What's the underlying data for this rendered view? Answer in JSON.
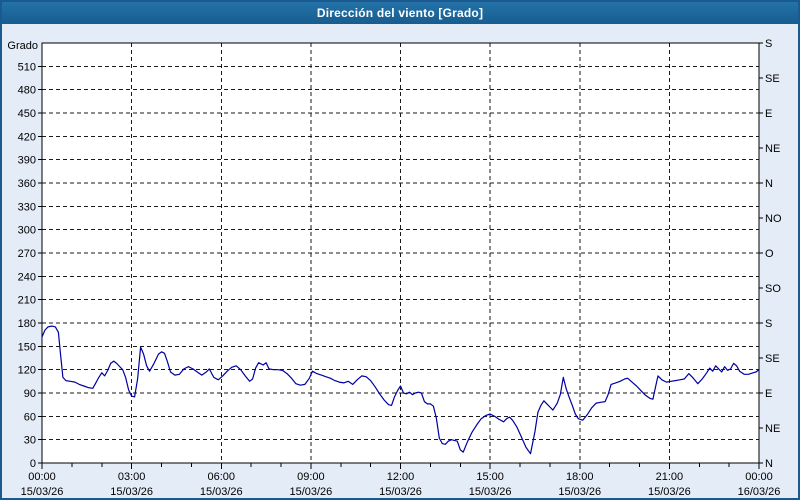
{
  "window": {
    "title": "Dirección del viento [Grado]"
  },
  "colors": {
    "window_border": "#1a5a8e",
    "titlebar_top": "#2473a8",
    "titlebar_bottom": "#175d90",
    "title_text": "#ffffff",
    "background": "#e4ecf7",
    "plot_background": "#ffffff",
    "grid": "#1a1a1a",
    "axis_text": "#000000",
    "line": "#0000a0"
  },
  "y_axis": {
    "title": "Grado",
    "tick_values": [
      0,
      30,
      60,
      90,
      120,
      150,
      180,
      210,
      240,
      270,
      300,
      330,
      360,
      390,
      420,
      450,
      480,
      510
    ],
    "tick_labels": [
      "0",
      "30",
      "60",
      "90",
      "120",
      "150",
      "180",
      "210",
      "240",
      "270",
      "300",
      "330",
      "360",
      "390",
      "420",
      "450",
      "480",
      "510"
    ]
  },
  "y2_axis": {
    "tick_step_deg": 45,
    "labels_bottom_to_top": [
      "N",
      "NE",
      "E",
      "SE",
      "S",
      "SO",
      "O",
      "NO",
      "N",
      "NE",
      "E",
      "SE",
      "S"
    ]
  },
  "x_axis": {
    "minor_tick_every_hours": 1,
    "ticks": [
      {
        "hour": 0,
        "time": "00:00",
        "date": "15/03/26"
      },
      {
        "hour": 3,
        "time": "03:00",
        "date": "15/03/26"
      },
      {
        "hour": 6,
        "time": "06:00",
        "date": "15/03/26"
      },
      {
        "hour": 9,
        "time": "09:00",
        "date": "15/03/26"
      },
      {
        "hour": 12,
        "time": "12:00",
        "date": "15/03/26"
      },
      {
        "hour": 15,
        "time": "15:00",
        "date": "15/03/26"
      },
      {
        "hour": 18,
        "time": "18:00",
        "date": "15/03/26"
      },
      {
        "hour": 21,
        "time": "21:00",
        "date": "15/03/26"
      },
      {
        "hour": 24,
        "time": "00:00",
        "date": "16/03/26"
      }
    ]
  },
  "chart_data": {
    "type": "line",
    "title": "Dirección del viento [Grado]",
    "xlabel": "",
    "ylabel": "Grado",
    "ylim": [
      0,
      540
    ],
    "xlim_hours": [
      0,
      24
    ],
    "grid": "dashed",
    "legend": "none",
    "series": [
      {
        "name": "Dirección del viento",
        "color": "#0000a0",
        "points": [
          [
            0.0,
            162
          ],
          [
            0.1,
            171
          ],
          [
            0.2,
            175
          ],
          [
            0.33,
            176
          ],
          [
            0.45,
            175
          ],
          [
            0.55,
            168
          ],
          [
            0.62,
            140
          ],
          [
            0.7,
            110
          ],
          [
            0.8,
            106
          ],
          [
            0.95,
            105
          ],
          [
            1.1,
            104
          ],
          [
            1.25,
            101
          ],
          [
            1.4,
            99
          ],
          [
            1.55,
            97
          ],
          [
            1.7,
            96
          ],
          [
            1.8,
            103
          ],
          [
            1.9,
            110
          ],
          [
            2.0,
            116
          ],
          [
            2.1,
            112
          ],
          [
            2.2,
            119
          ],
          [
            2.3,
            128
          ],
          [
            2.4,
            131
          ],
          [
            2.5,
            128
          ],
          [
            2.6,
            124
          ],
          [
            2.7,
            120
          ],
          [
            2.8,
            110
          ],
          [
            2.9,
            94
          ],
          [
            3.0,
            86
          ],
          [
            3.1,
            85
          ],
          [
            3.2,
            108
          ],
          [
            3.3,
            149
          ],
          [
            3.4,
            140
          ],
          [
            3.5,
            125
          ],
          [
            3.6,
            118
          ],
          [
            3.75,
            128
          ],
          [
            3.9,
            140
          ],
          [
            4.0,
            143
          ],
          [
            4.1,
            141
          ],
          [
            4.2,
            130
          ],
          [
            4.3,
            117
          ],
          [
            4.45,
            113
          ],
          [
            4.6,
            114
          ],
          [
            4.75,
            121
          ],
          [
            4.9,
            124
          ],
          [
            5.05,
            121
          ],
          [
            5.2,
            117
          ],
          [
            5.35,
            113
          ],
          [
            5.5,
            117
          ],
          [
            5.6,
            121
          ],
          [
            5.75,
            110
          ],
          [
            5.9,
            107
          ],
          [
            6.05,
            112
          ],
          [
            6.2,
            118
          ],
          [
            6.35,
            123
          ],
          [
            6.5,
            125
          ],
          [
            6.65,
            120
          ],
          [
            6.8,
            112
          ],
          [
            6.95,
            105
          ],
          [
            7.05,
            108
          ],
          [
            7.15,
            122
          ],
          [
            7.25,
            129
          ],
          [
            7.4,
            126
          ],
          [
            7.5,
            129
          ],
          [
            7.6,
            121
          ],
          [
            7.75,
            120
          ],
          [
            7.9,
            120
          ],
          [
            8.05,
            119
          ],
          [
            8.2,
            115
          ],
          [
            8.35,
            109
          ],
          [
            8.5,
            102
          ],
          [
            8.65,
            100
          ],
          [
            8.8,
            101
          ],
          [
            8.95,
            109
          ],
          [
            9.05,
            118
          ],
          [
            9.2,
            115
          ],
          [
            9.35,
            113
          ],
          [
            9.5,
            111
          ],
          [
            9.65,
            109
          ],
          [
            9.8,
            106
          ],
          [
            9.95,
            104
          ],
          [
            10.1,
            103
          ],
          [
            10.25,
            105
          ],
          [
            10.4,
            101
          ],
          [
            10.55,
            107
          ],
          [
            10.7,
            112
          ],
          [
            10.85,
            111
          ],
          [
            11.0,
            106
          ],
          [
            11.15,
            98
          ],
          [
            11.3,
            89
          ],
          [
            11.45,
            81
          ],
          [
            11.6,
            75
          ],
          [
            11.7,
            74
          ],
          [
            11.8,
            85
          ],
          [
            11.9,
            93
          ],
          [
            12.0,
            99
          ],
          [
            12.1,
            90
          ],
          [
            12.2,
            89
          ],
          [
            12.3,
            91
          ],
          [
            12.4,
            88
          ],
          [
            12.5,
            90
          ],
          [
            12.6,
            91
          ],
          [
            12.7,
            90
          ],
          [
            12.8,
            79
          ],
          [
            12.9,
            76
          ],
          [
            13.0,
            76
          ],
          [
            13.1,
            73
          ],
          [
            13.2,
            58
          ],
          [
            13.3,
            32
          ],
          [
            13.4,
            25
          ],
          [
            13.5,
            24
          ],
          [
            13.6,
            28
          ],
          [
            13.7,
            30
          ],
          [
            13.8,
            29
          ],
          [
            13.9,
            28
          ],
          [
            14.0,
            17
          ],
          [
            14.1,
            14
          ],
          [
            14.25,
            28
          ],
          [
            14.4,
            40
          ],
          [
            14.55,
            49
          ],
          [
            14.7,
            57
          ],
          [
            14.85,
            61
          ],
          [
            15.0,
            63
          ],
          [
            15.15,
            60
          ],
          [
            15.3,
            56
          ],
          [
            15.45,
            53
          ],
          [
            15.55,
            57
          ],
          [
            15.65,
            59
          ],
          [
            15.75,
            55
          ],
          [
            15.9,
            46
          ],
          [
            16.05,
            33
          ],
          [
            16.2,
            20
          ],
          [
            16.35,
            12
          ],
          [
            16.5,
            40
          ],
          [
            16.6,
            65
          ],
          [
            16.7,
            74
          ],
          [
            16.8,
            80
          ],
          [
            16.9,
            76
          ],
          [
            17.0,
            72
          ],
          [
            17.1,
            68
          ],
          [
            17.25,
            77
          ],
          [
            17.35,
            88
          ],
          [
            17.45,
            110
          ],
          [
            17.55,
            95
          ],
          [
            17.65,
            84
          ],
          [
            17.75,
            74
          ],
          [
            17.85,
            63
          ],
          [
            17.95,
            57
          ],
          [
            18.1,
            55
          ],
          [
            18.25,
            62
          ],
          [
            18.4,
            71
          ],
          [
            18.55,
            77
          ],
          [
            18.7,
            78
          ],
          [
            18.85,
            79
          ],
          [
            18.95,
            88
          ],
          [
            19.05,
            101
          ],
          [
            19.2,
            103
          ],
          [
            19.35,
            105
          ],
          [
            19.5,
            108
          ],
          [
            19.6,
            109
          ],
          [
            19.75,
            104
          ],
          [
            19.9,
            99
          ],
          [
            20.05,
            93
          ],
          [
            20.2,
            87
          ],
          [
            20.35,
            83
          ],
          [
            20.45,
            82
          ],
          [
            20.55,
            100
          ],
          [
            20.62,
            112
          ],
          [
            20.75,
            107
          ],
          [
            20.9,
            104
          ],
          [
            21.05,
            105
          ],
          [
            21.2,
            106
          ],
          [
            21.35,
            107
          ],
          [
            21.5,
            108
          ],
          [
            21.65,
            115
          ],
          [
            21.8,
            109
          ],
          [
            21.95,
            102
          ],
          [
            22.1,
            108
          ],
          [
            22.25,
            116
          ],
          [
            22.35,
            122
          ],
          [
            22.45,
            118
          ],
          [
            22.55,
            125
          ],
          [
            22.65,
            121
          ],
          [
            22.75,
            117
          ],
          [
            22.85,
            124
          ],
          [
            22.95,
            119
          ],
          [
            23.05,
            121
          ],
          [
            23.15,
            128
          ],
          [
            23.25,
            125
          ],
          [
            23.35,
            118
          ],
          [
            23.5,
            114
          ],
          [
            23.65,
            114
          ],
          [
            23.8,
            116
          ],
          [
            23.9,
            117
          ],
          [
            24.0,
            120
          ]
        ]
      }
    ]
  }
}
